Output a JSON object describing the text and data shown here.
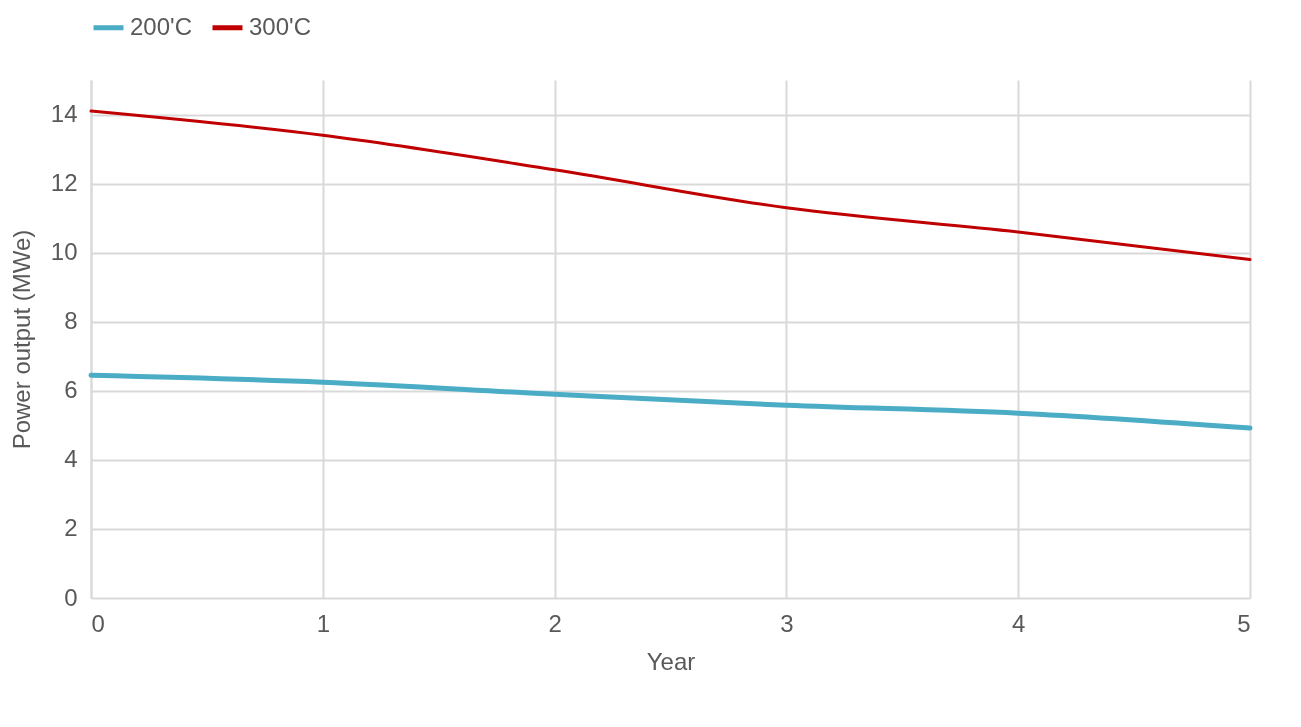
{
  "chart_data": {
    "type": "line",
    "xlabel": "Year",
    "ylabel": "Power output (MWe)",
    "x": [
      0,
      1,
      2,
      3,
      4,
      5
    ],
    "series": [
      {
        "name": "200'C",
        "color": "#4bacc6",
        "values": [
          6.45,
          6.25,
          5.9,
          5.58,
          5.35,
          4.92
        ]
      },
      {
        "name": "300'C",
        "color": "#c00000",
        "values": [
          14.1,
          13.4,
          12.4,
          11.3,
          10.6,
          9.8
        ]
      }
    ],
    "xlim": [
      0,
      5
    ],
    "xticks": [
      0,
      1,
      2,
      3,
      4,
      5
    ],
    "ylim": [
      0,
      15
    ],
    "yticks": [
      0,
      2,
      4,
      6,
      8,
      10,
      12,
      14
    ],
    "grid": true,
    "legend": "top",
    "marker": "none",
    "line_style": "solid"
  }
}
